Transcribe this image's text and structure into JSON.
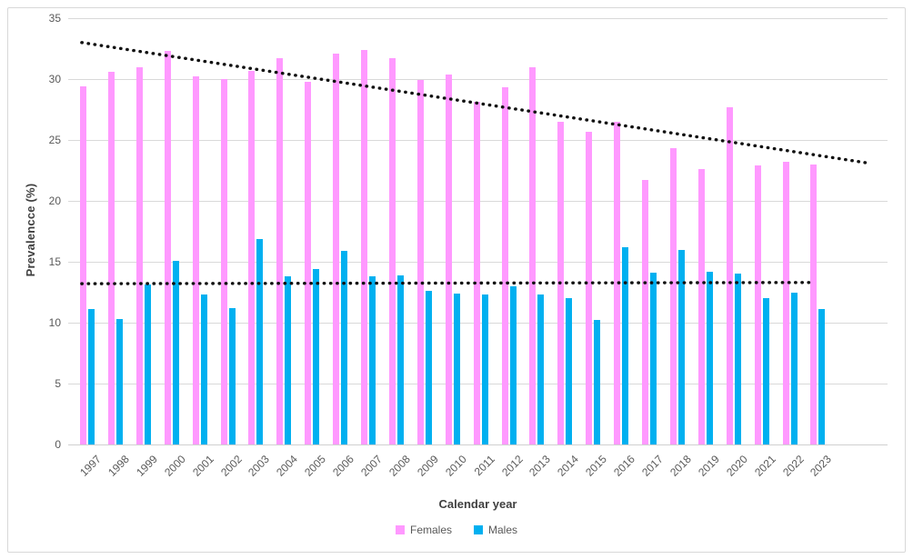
{
  "chart_data": {
    "type": "bar",
    "title": "",
    "xlabel": "Calendar year",
    "ylabel": "Prevalencce (%)",
    "ylim": [
      0,
      35
    ],
    "yticks": [
      0,
      5,
      10,
      15,
      20,
      25,
      30,
      35
    ],
    "grid": "horizontal",
    "legend_position": "bottom",
    "categories": [
      "1997",
      "1998",
      "1999",
      "2000",
      "2001",
      "2002",
      "2003",
      "2004",
      "2005",
      "2006",
      "2007",
      "2008",
      "2009",
      "2010",
      "2011",
      "2012",
      "2013",
      "2014",
      "2015",
      "2016",
      "2017",
      "2018",
      "2019",
      "2020",
      "2021",
      "2022",
      "2023"
    ],
    "series": [
      {
        "name": "Females",
        "color": "#FF99FF",
        "values": [
          29.4,
          30.6,
          31.0,
          32.3,
          30.2,
          30.0,
          30.7,
          31.7,
          29.8,
          32.1,
          32.4,
          31.7,
          29.9,
          30.4,
          28.1,
          29.3,
          31.0,
          26.5,
          25.7,
          26.5,
          21.7,
          24.3,
          22.6,
          27.7,
          22.9,
          23.2,
          23.0
        ]
      },
      {
        "name": "Males",
        "color": "#00B0F0",
        "values": [
          11.1,
          10.3,
          13.1,
          15.1,
          12.3,
          11.2,
          16.9,
          13.8,
          14.4,
          15.9,
          13.8,
          13.9,
          12.6,
          12.4,
          12.3,
          13.0,
          12.3,
          12.0,
          10.2,
          16.2,
          14.1,
          16.0,
          14.2,
          14.0,
          12.0,
          12.5,
          11.1
        ]
      }
    ],
    "trendlines": [
      {
        "series": "Females",
        "style": "dotted",
        "color": "#111111",
        "start_index": -0.1,
        "end_index": 27.9,
        "start_value": 33.0,
        "end_value": 23.1
      },
      {
        "series": "Males",
        "style": "dotted",
        "color": "#111111",
        "start_index": -0.1,
        "end_index": 25.9,
        "start_value": 13.2,
        "end_value": 13.3
      }
    ]
  }
}
